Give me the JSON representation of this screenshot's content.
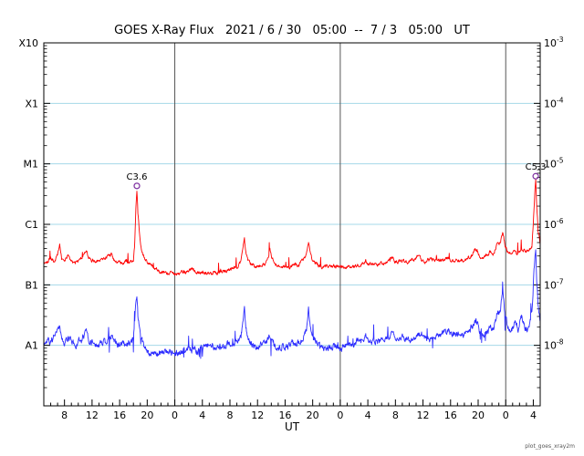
{
  "chart_data": {
    "type": "line",
    "title": "GOES X-Ray Flux   2021 / 6 / 30   05:00  --  7 / 3   05:00   UT",
    "xlabel": "UT",
    "watermark": "plot_goes_xray2m",
    "x_unit": "hours since 2021-06-30 05:00 UT",
    "x_range": [
      0,
      72
    ],
    "y_scale": "log",
    "y_range_log10": [
      -9,
      -3
    ],
    "left_axis": {
      "labels": [
        "X10",
        "X1",
        "M1",
        "C1",
        "B1",
        "A1"
      ],
      "log10": [
        -3,
        -4,
        -5,
        -6,
        -7,
        -8
      ]
    },
    "right_axis_exponents": [
      "-3",
      "-4",
      "-5",
      "-6",
      "-7",
      "-8"
    ],
    "x_ticks": [
      [
        3,
        "8"
      ],
      [
        7,
        "12"
      ],
      [
        11,
        "16"
      ],
      [
        15,
        "20"
      ],
      [
        19,
        "0"
      ],
      [
        23,
        "4"
      ],
      [
        27,
        "8"
      ],
      [
        31,
        "12"
      ],
      [
        35,
        "16"
      ],
      [
        39,
        "20"
      ],
      [
        43,
        "0"
      ],
      [
        47,
        "4"
      ],
      [
        51,
        "8"
      ],
      [
        55,
        "12"
      ],
      [
        59,
        "16"
      ],
      [
        63,
        "20"
      ],
      [
        67,
        "0"
      ],
      [
        71,
        "4"
      ]
    ],
    "day_boundary_hours": [
      19,
      43,
      67
    ],
    "colors": {
      "grid": "#a4d8e8",
      "day_line": "#555555",
      "frame": "#000000",
      "flare_marker": "#7d2ea0"
    },
    "flare_annotations": [
      {
        "label": "C3.6",
        "hour": 13.5,
        "log10_flux": -5.44
      },
      {
        "label": "C5.3",
        "hour": 71.35,
        "log10_flux": -5.28
      }
    ],
    "series": [
      {
        "name": "long-wavelength-red",
        "color": "#ff0000",
        "points_log10": [
          [
            0,
            -6.64
          ],
          [
            0.5,
            -6.6
          ],
          [
            1,
            -6.55
          ],
          [
            1.5,
            -6.62
          ],
          [
            2,
            -6.5
          ],
          [
            2.3,
            -6.34
          ],
          [
            2.6,
            -6.55
          ],
          [
            3,
            -6.6
          ],
          [
            3.5,
            -6.52
          ],
          [
            4,
            -6.58
          ],
          [
            4.5,
            -6.65
          ],
          [
            5,
            -6.6
          ],
          [
            5.5,
            -6.55
          ],
          [
            6.2,
            -6.44
          ],
          [
            6.5,
            -6.55
          ],
          [
            7,
            -6.6
          ],
          [
            7.5,
            -6.62
          ],
          [
            8,
            -6.58
          ],
          [
            9,
            -6.55
          ],
          [
            9.8,
            -6.49
          ],
          [
            10.2,
            -6.58
          ],
          [
            10.7,
            -6.62
          ],
          [
            11.5,
            -6.63
          ],
          [
            12,
            -6.6
          ],
          [
            12.5,
            -6.62
          ],
          [
            13,
            -6.58
          ],
          [
            13.2,
            -6.3
          ],
          [
            13.35,
            -5.7
          ],
          [
            13.5,
            -5.44
          ],
          [
            13.65,
            -5.8
          ],
          [
            13.9,
            -6.2
          ],
          [
            14.2,
            -6.45
          ],
          [
            14.6,
            -6.55
          ],
          [
            15,
            -6.62
          ],
          [
            15.5,
            -6.68
          ],
          [
            16,
            -6.72
          ],
          [
            16.5,
            -6.75
          ],
          [
            17,
            -6.78
          ],
          [
            18,
            -6.82
          ],
          [
            19,
            -6.82
          ],
          [
            20,
            -6.8
          ],
          [
            21,
            -6.78
          ],
          [
            21.5,
            -6.72
          ],
          [
            22,
            -6.78
          ],
          [
            23,
            -6.8
          ],
          [
            24,
            -6.82
          ],
          [
            25,
            -6.8
          ],
          [
            26,
            -6.78
          ],
          [
            27,
            -6.75
          ],
          [
            27.5,
            -6.7
          ],
          [
            28,
            -6.72
          ],
          [
            28.6,
            -6.6
          ],
          [
            28.9,
            -6.4
          ],
          [
            29.1,
            -6.25
          ],
          [
            29.3,
            -6.45
          ],
          [
            29.6,
            -6.6
          ],
          [
            30,
            -6.65
          ],
          [
            30.5,
            -6.7
          ],
          [
            31,
            -6.72
          ],
          [
            31.5,
            -6.68
          ],
          [
            32,
            -6.65
          ],
          [
            32.5,
            -6.55
          ],
          [
            32.8,
            -6.42
          ],
          [
            33.1,
            -6.55
          ],
          [
            33.5,
            -6.65
          ],
          [
            34,
            -6.7
          ],
          [
            34.5,
            -6.68
          ],
          [
            35,
            -6.72
          ],
          [
            35.5,
            -6.7
          ],
          [
            36,
            -6.68
          ],
          [
            36.5,
            -6.65
          ],
          [
            37,
            -6.68
          ],
          [
            37.5,
            -6.6
          ],
          [
            38.1,
            -6.5
          ],
          [
            38.4,
            -6.29
          ],
          [
            38.7,
            -6.5
          ],
          [
            39,
            -6.6
          ],
          [
            39.5,
            -6.65
          ],
          [
            40,
            -6.68
          ],
          [
            40.5,
            -6.72
          ],
          [
            41,
            -6.7
          ],
          [
            42,
            -6.7
          ],
          [
            43,
            -6.7
          ],
          [
            44,
            -6.7
          ],
          [
            45,
            -6.7
          ],
          [
            46,
            -6.66
          ],
          [
            46.7,
            -6.6
          ],
          [
            47,
            -6.65
          ],
          [
            48,
            -6.66
          ],
          [
            49,
            -6.65
          ],
          [
            50,
            -6.62
          ],
          [
            50.7,
            -6.55
          ],
          [
            51,
            -6.62
          ],
          [
            52,
            -6.62
          ],
          [
            53,
            -6.62
          ],
          [
            53.7,
            -6.58
          ],
          [
            54.4,
            -6.52
          ],
          [
            54.8,
            -6.6
          ],
          [
            55.3,
            -6.62
          ],
          [
            56,
            -6.58
          ],
          [
            57,
            -6.6
          ],
          [
            58,
            -6.6
          ],
          [
            58.7,
            -6.55
          ],
          [
            59,
            -6.6
          ],
          [
            60,
            -6.6
          ],
          [
            60.5,
            -6.58
          ],
          [
            61,
            -6.6
          ],
          [
            61.5,
            -6.55
          ],
          [
            62,
            -6.52
          ],
          [
            62.7,
            -6.4
          ],
          [
            63.2,
            -6.52
          ],
          [
            63.7,
            -6.55
          ],
          [
            64.2,
            -6.5
          ],
          [
            64.7,
            -6.45
          ],
          [
            65.2,
            -6.5
          ],
          [
            65.7,
            -6.35
          ],
          [
            66.2,
            -6.3
          ],
          [
            66.6,
            -6.14
          ],
          [
            66.9,
            -6.35
          ],
          [
            67.3,
            -6.45
          ],
          [
            67.8,
            -6.5
          ],
          [
            68.3,
            -6.45
          ],
          [
            68.8,
            -6.48
          ],
          [
            69.3,
            -6.45
          ],
          [
            69.8,
            -6.42
          ],
          [
            70.3,
            -6.45
          ],
          [
            70.8,
            -6.35
          ],
          [
            71,
            -6.0
          ],
          [
            71.2,
            -5.5
          ],
          [
            71.35,
            -5.28
          ],
          [
            71.5,
            -5.7
          ],
          [
            71.7,
            -6.1
          ],
          [
            72,
            -6.3
          ]
        ]
      },
      {
        "name": "short-wavelength-blue",
        "color": "#2b2bff",
        "points_log10": [
          [
            0,
            -7.95
          ],
          [
            0.5,
            -7.9
          ],
          [
            1,
            -7.95
          ],
          [
            1.5,
            -7.85
          ],
          [
            2,
            -7.8
          ],
          [
            2.3,
            -7.65
          ],
          [
            2.6,
            -7.85
          ],
          [
            3,
            -7.95
          ],
          [
            3.5,
            -7.9
          ],
          [
            4,
            -7.95
          ],
          [
            4.5,
            -8.0
          ],
          [
            5,
            -7.95
          ],
          [
            5.5,
            -7.9
          ],
          [
            6.2,
            -7.75
          ],
          [
            6.5,
            -7.9
          ],
          [
            7,
            -7.95
          ],
          [
            7.5,
            -8.0
          ],
          [
            8,
            -7.95
          ],
          [
            9,
            -7.95
          ],
          [
            9.8,
            -7.85
          ],
          [
            10.2,
            -7.95
          ],
          [
            11,
            -8.0
          ],
          [
            11.5,
            -7.95
          ],
          [
            12,
            -8.0
          ],
          [
            13,
            -7.9
          ],
          [
            13.2,
            -7.6
          ],
          [
            13.35,
            -7.3
          ],
          [
            13.5,
            -7.15
          ],
          [
            13.65,
            -7.5
          ],
          [
            13.9,
            -7.75
          ],
          [
            14.2,
            -7.9
          ],
          [
            14.6,
            -8.0
          ],
          [
            15,
            -8.1
          ],
          [
            15.5,
            -8.15
          ],
          [
            16,
            -8.1
          ],
          [
            16.5,
            -8.15
          ],
          [
            17,
            -8.1
          ],
          [
            18,
            -8.1
          ],
          [
            19,
            -8.15
          ],
          [
            20,
            -8.1
          ],
          [
            21,
            -8.05
          ],
          [
            22,
            -8.1
          ],
          [
            23,
            -8.05
          ],
          [
            24,
            -8.0
          ],
          [
            25,
            -8.05
          ],
          [
            26,
            -8.0
          ],
          [
            27,
            -7.95
          ],
          [
            28,
            -7.95
          ],
          [
            28.6,
            -7.85
          ],
          [
            28.9,
            -7.6
          ],
          [
            29.1,
            -7.43
          ],
          [
            29.3,
            -7.7
          ],
          [
            29.6,
            -7.9
          ],
          [
            30,
            -7.95
          ],
          [
            30.5,
            -8.0
          ],
          [
            31,
            -8.05
          ],
          [
            31.5,
            -8.0
          ],
          [
            32,
            -7.95
          ],
          [
            32.5,
            -7.9
          ],
          [
            32.8,
            -7.8
          ],
          [
            33.1,
            -7.9
          ],
          [
            33.5,
            -8.0
          ],
          [
            34,
            -8.05
          ],
          [
            34.5,
            -8.0
          ],
          [
            35,
            -8.05
          ],
          [
            36,
            -7.95
          ],
          [
            36.5,
            -8.0
          ],
          [
            37,
            -7.95
          ],
          [
            37.5,
            -7.9
          ],
          [
            38.1,
            -7.75
          ],
          [
            38.4,
            -7.35
          ],
          [
            38.7,
            -7.7
          ],
          [
            39,
            -7.85
          ],
          [
            39.5,
            -7.95
          ],
          [
            40,
            -8.0
          ],
          [
            41,
            -8.05
          ],
          [
            42,
            -8.0
          ],
          [
            43,
            -8.05
          ],
          [
            44,
            -8.0
          ],
          [
            45,
            -7.95
          ],
          [
            46,
            -7.9
          ],
          [
            46.7,
            -7.85
          ],
          [
            47,
            -7.9
          ],
          [
            48,
            -7.95
          ],
          [
            49,
            -7.9
          ],
          [
            50,
            -7.85
          ],
          [
            50.7,
            -7.8
          ],
          [
            51,
            -7.9
          ],
          [
            52,
            -7.85
          ],
          [
            53,
            -7.9
          ],
          [
            54,
            -7.85
          ],
          [
            54.4,
            -7.8
          ],
          [
            55,
            -7.85
          ],
          [
            56,
            -7.9
          ],
          [
            57,
            -7.85
          ],
          [
            58,
            -7.8
          ],
          [
            58.7,
            -7.75
          ],
          [
            59,
            -7.8
          ],
          [
            60,
            -7.85
          ],
          [
            61,
            -7.8
          ],
          [
            61.5,
            -7.75
          ],
          [
            62,
            -7.7
          ],
          [
            62.7,
            -7.6
          ],
          [
            63.2,
            -7.75
          ],
          [
            64,
            -7.8
          ],
          [
            64.7,
            -7.7
          ],
          [
            65.2,
            -7.75
          ],
          [
            65.7,
            -7.5
          ],
          [
            66.2,
            -7.4
          ],
          [
            66.6,
            -7.12
          ],
          [
            66.9,
            -7.5
          ],
          [
            67.3,
            -7.7
          ],
          [
            67.8,
            -7.8
          ],
          [
            68.3,
            -7.6
          ],
          [
            68.8,
            -7.75
          ],
          [
            69.3,
            -7.5
          ],
          [
            69.8,
            -7.7
          ],
          [
            70.3,
            -7.75
          ],
          [
            70.8,
            -7.4
          ],
          [
            71,
            -7.0
          ],
          [
            71.2,
            -6.6
          ],
          [
            71.35,
            -6.35
          ],
          [
            71.5,
            -6.9
          ],
          [
            71.7,
            -7.3
          ],
          [
            72,
            -7.6
          ]
        ]
      }
    ]
  }
}
